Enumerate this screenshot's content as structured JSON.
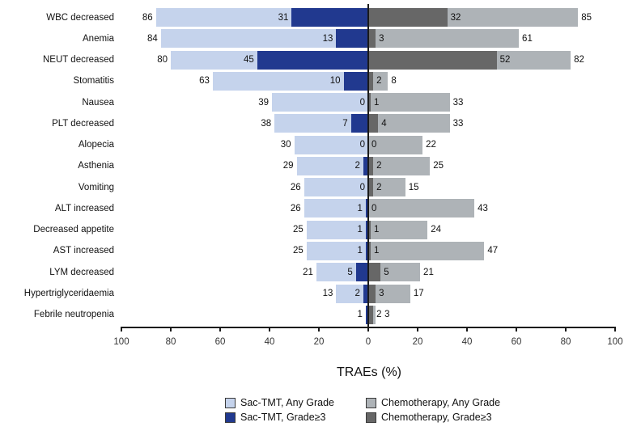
{
  "chart_data": {
    "type": "bar",
    "variant": "diverging-horizontal-tornado",
    "title": "",
    "xlabel": "TRAEs (%)",
    "xlim": [
      -100,
      100
    ],
    "x_tick_labels": [
      "100",
      "80",
      "60",
      "40",
      "20",
      "0",
      "20",
      "40",
      "60",
      "80",
      "100"
    ],
    "grid": false,
    "categories": [
      "WBC decreased",
      "Anemia",
      "NEUT decreased",
      "Stomatitis",
      "Nausea",
      "PLT decreased",
      "Alopecia",
      "Asthenia",
      "Vomiting",
      "ALT increased",
      "Decreased appetite",
      "AST increased",
      "LYM decreased",
      "Hypertriglyceridaemia",
      "Febrile neutropenia"
    ],
    "series": [
      {
        "name": "Sac-TMT, Any Grade",
        "side": "left",
        "layer": "base",
        "color_key": "sac_any",
        "values": [
          86,
          84,
          80,
          63,
          39,
          38,
          30,
          29,
          26,
          26,
          25,
          25,
          21,
          13,
          1
        ]
      },
      {
        "name": "Sac-TMT, Grade≥3",
        "side": "left",
        "layer": "overlay",
        "color_key": "sac_g3",
        "values": [
          31,
          13,
          45,
          10,
          0,
          7,
          0,
          2,
          0,
          1,
          1,
          1,
          5,
          2,
          1
        ]
      },
      {
        "name": "Chemotherapy, Any Grade",
        "side": "right",
        "layer": "base",
        "color_key": "chemo_any",
        "values": [
          85,
          61,
          82,
          8,
          33,
          33,
          22,
          25,
          15,
          43,
          24,
          47,
          21,
          17,
          3
        ]
      },
      {
        "name": "Chemotherapy, Grade≥3",
        "side": "right",
        "layer": "overlay",
        "color_key": "chemo_g3",
        "values": [
          32,
          3,
          52,
          2,
          1,
          4,
          0,
          2,
          2,
          0,
          1,
          1,
          5,
          3,
          2
        ]
      }
    ],
    "legend_position": "bottom",
    "legend": [
      {
        "label": "Sac-TMT, Any Grade",
        "color_key": "sac_any",
        "row": 0,
        "col": 0
      },
      {
        "label": "Chemotherapy, Any Grade",
        "color_key": "chemo_any",
        "row": 0,
        "col": 1
      },
      {
        "label": "Sac-TMT, Grade≥3",
        "color_key": "sac_g3",
        "row": 1,
        "col": 0
      },
      {
        "label": "Chemotherapy, Grade≥3",
        "color_key": "chemo_g3",
        "row": 1,
        "col": 1
      }
    ],
    "colors": {
      "sac_any": "#c5d3ec",
      "sac_g3": "#21398f",
      "chemo_any": "#aeb3b7",
      "chemo_g3": "#676767",
      "axis": "#1a1a1a",
      "text": "#111111"
    }
  }
}
